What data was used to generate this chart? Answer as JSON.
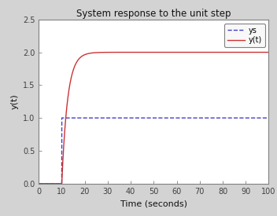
{
  "title": "System response to the unit step",
  "xlabel": "Time (seconds)",
  "ylabel": "y(t)",
  "xlim": [
    0,
    100
  ],
  "ylim": [
    0,
    2.5
  ],
  "xticks": [
    0,
    10,
    20,
    30,
    40,
    50,
    60,
    70,
    80,
    90,
    100
  ],
  "yticks": [
    0,
    0.5,
    1.0,
    1.5,
    2.0,
    2.5
  ],
  "step_time": 10,
  "steady_state": 2.0,
  "step_value": 1.0,
  "time_constant": 2.5,
  "color_step": "#4040cc",
  "color_response": "#cc3333",
  "legend_labels": [
    "ys",
    "y(t)"
  ],
  "figure_bg_color": "#d3d3d3",
  "axes_bg_color": "#ffffff",
  "axes_edge_color": "#808080",
  "tick_color": "#404040",
  "title_fontsize": 8.5,
  "label_fontsize": 8,
  "tick_fontsize": 7,
  "legend_fontsize": 7
}
